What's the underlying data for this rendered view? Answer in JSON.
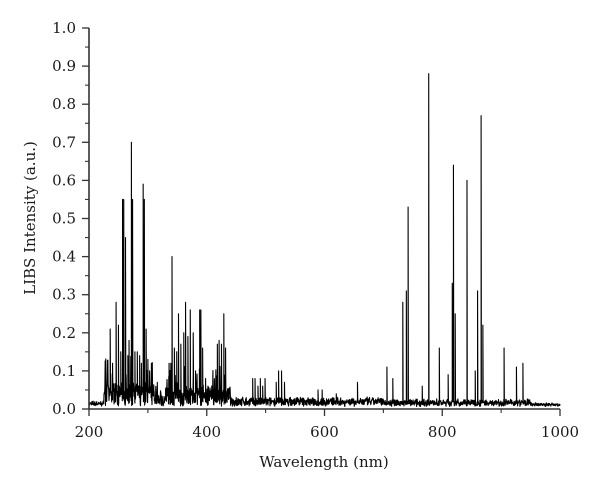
{
  "chart_data": {
    "type": "line",
    "title": "",
    "xlabel": "Wavelength (nm)",
    "ylabel": "LIBS Intensity (a.u.)",
    "xlim": [
      200,
      1000
    ],
    "ylim": [
      0.0,
      1.0
    ],
    "grid": false,
    "legend": null,
    "x_ticks": [
      "200",
      "400",
      "600",
      "800",
      "1000"
    ],
    "x_tick_values": [
      200,
      400,
      600,
      800,
      1000
    ],
    "x_minor_ticks": [
      300,
      500,
      700,
      900
    ],
    "y_ticks": [
      "0.0",
      "0.1",
      "0.2",
      "0.3",
      "0.4",
      "0.5",
      "0.6",
      "0.7",
      "0.8",
      "0.9",
      "1.0"
    ],
    "y_tick_values": [
      0.0,
      0.1,
      0.2,
      0.3,
      0.4,
      0.5,
      0.6,
      0.7,
      0.8,
      0.9,
      1.0
    ],
    "line_color": "#000000",
    "series": [
      {
        "name": "LIBS spectrum",
        "peaks": [
          {
            "x": 236,
            "y": 0.21
          },
          {
            "x": 240,
            "y": 0.12
          },
          {
            "x": 246,
            "y": 0.28
          },
          {
            "x": 250,
            "y": 0.22
          },
          {
            "x": 254,
            "y": 0.15
          },
          {
            "x": 257,
            "y": 0.55
          },
          {
            "x": 259,
            "y": 0.55
          },
          {
            "x": 262,
            "y": 0.45
          },
          {
            "x": 266,
            "y": 0.14
          },
          {
            "x": 268,
            "y": 0.18
          },
          {
            "x": 272,
            "y": 0.7
          },
          {
            "x": 274,
            "y": 0.55
          },
          {
            "x": 278,
            "y": 0.15
          },
          {
            "x": 282,
            "y": 0.15
          },
          {
            "x": 286,
            "y": 0.14
          },
          {
            "x": 289,
            "y": 0.12
          },
          {
            "x": 292,
            "y": 0.59
          },
          {
            "x": 294,
            "y": 0.55
          },
          {
            "x": 297,
            "y": 0.21
          },
          {
            "x": 300,
            "y": 0.13
          },
          {
            "x": 306,
            "y": 0.12
          },
          {
            "x": 310,
            "y": 0.06
          },
          {
            "x": 316,
            "y": 0.07
          },
          {
            "x": 330,
            "y": 0.05
          },
          {
            "x": 336,
            "y": 0.12
          },
          {
            "x": 339,
            "y": 0.12
          },
          {
            "x": 341,
            "y": 0.4
          },
          {
            "x": 345,
            "y": 0.16
          },
          {
            "x": 349,
            "y": 0.15
          },
          {
            "x": 352,
            "y": 0.25
          },
          {
            "x": 356,
            "y": 0.17
          },
          {
            "x": 361,
            "y": 0.2
          },
          {
            "x": 364,
            "y": 0.28
          },
          {
            "x": 368,
            "y": 0.19
          },
          {
            "x": 372,
            "y": 0.26
          },
          {
            "x": 377,
            "y": 0.2
          },
          {
            "x": 381,
            "y": 0.1
          },
          {
            "x": 388,
            "y": 0.26
          },
          {
            "x": 390,
            "y": 0.26
          },
          {
            "x": 393,
            "y": 0.16
          },
          {
            "x": 398,
            "y": 0.08
          },
          {
            "x": 402,
            "y": 0.06
          },
          {
            "x": 410,
            "y": 0.05
          },
          {
            "x": 418,
            "y": 0.17
          },
          {
            "x": 421,
            "y": 0.18
          },
          {
            "x": 425,
            "y": 0.17
          },
          {
            "x": 429,
            "y": 0.25
          },
          {
            "x": 432,
            "y": 0.16
          },
          {
            "x": 438,
            "y": 0.04
          },
          {
            "x": 450,
            "y": 0.03
          },
          {
            "x": 478,
            "y": 0.08
          },
          {
            "x": 482,
            "y": 0.08
          },
          {
            "x": 487,
            "y": 0.06
          },
          {
            "x": 491,
            "y": 0.08
          },
          {
            "x": 495,
            "y": 0.06
          },
          {
            "x": 499,
            "y": 0.08
          },
          {
            "x": 518,
            "y": 0.07
          },
          {
            "x": 522,
            "y": 0.1
          },
          {
            "x": 527,
            "y": 0.1
          },
          {
            "x": 532,
            "y": 0.07
          },
          {
            "x": 589,
            "y": 0.05
          },
          {
            "x": 596,
            "y": 0.05
          },
          {
            "x": 620,
            "y": 0.04
          },
          {
            "x": 656,
            "y": 0.07
          },
          {
            "x": 706,
            "y": 0.11
          },
          {
            "x": 716,
            "y": 0.08
          },
          {
            "x": 733,
            "y": 0.28
          },
          {
            "x": 739,
            "y": 0.31
          },
          {
            "x": 742,
            "y": 0.53
          },
          {
            "x": 766,
            "y": 0.06
          },
          {
            "x": 777,
            "y": 0.88
          },
          {
            "x": 795,
            "y": 0.16
          },
          {
            "x": 810,
            "y": 0.09
          },
          {
            "x": 817,
            "y": 0.33
          },
          {
            "x": 819,
            "y": 0.64
          },
          {
            "x": 822,
            "y": 0.25
          },
          {
            "x": 842,
            "y": 0.6
          },
          {
            "x": 856,
            "y": 0.1
          },
          {
            "x": 860,
            "y": 0.31
          },
          {
            "x": 866,
            "y": 0.77
          },
          {
            "x": 869,
            "y": 0.22
          },
          {
            "x": 905,
            "y": 0.16
          },
          {
            "x": 926,
            "y": 0.11
          },
          {
            "x": 937,
            "y": 0.12
          },
          {
            "x": 975,
            "y": 0.01
          }
        ],
        "baseline_bands": [
          {
            "from": 200,
            "to": 225,
            "y": 0.01
          },
          {
            "from": 225,
            "to": 310,
            "y": 0.06
          },
          {
            "from": 310,
            "to": 330,
            "y": 0.03
          },
          {
            "from": 330,
            "to": 440,
            "y": 0.05
          },
          {
            "from": 440,
            "to": 700,
            "y": 0.02
          },
          {
            "from": 700,
            "to": 950,
            "y": 0.015
          },
          {
            "from": 950,
            "to": 1000,
            "y": 0.005
          }
        ]
      }
    ]
  }
}
